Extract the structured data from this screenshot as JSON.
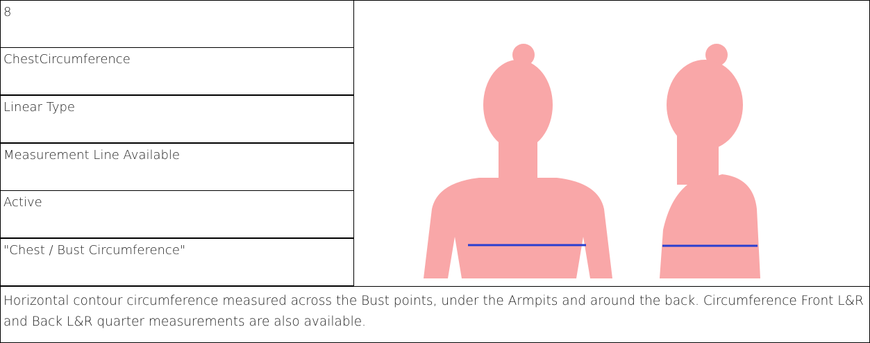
{
  "table": {
    "rows": [
      "8",
      "ChestCircumference",
      "Linear Type",
      "Measurement Line Available",
      "Active",
      "\"Chest / Bust Circumference\""
    ],
    "description": "Horizontal contour circumference measured across the Bust points, under the Armpits and around the back. Circumference Front L&R and Back L&R quarter measurements are also available."
  }
}
